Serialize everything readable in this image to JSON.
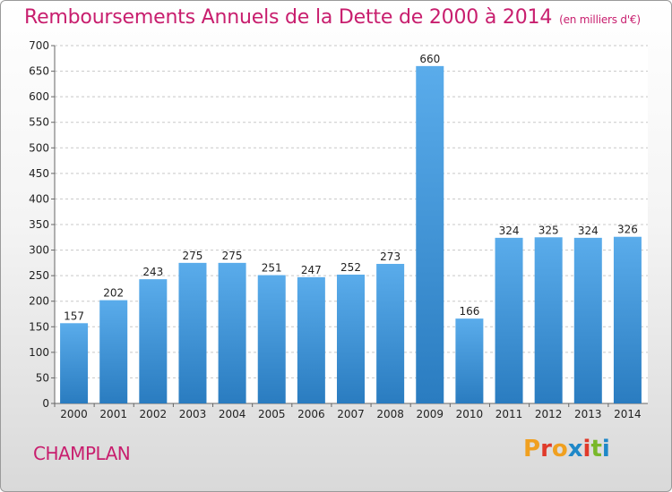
{
  "header": {
    "title": "Remboursements Annuels de la Dette de 2000 à 2014",
    "unit": "(en milliers d'€)"
  },
  "footer": {
    "commune": "CHAMPLAN",
    "logo_text": "Proxiti"
  },
  "colors": {
    "title": "#c81e6e",
    "bar_top": "#5aaceb",
    "bar_bottom": "#2a7cc0",
    "logo_letters": [
      "#f0a020",
      "#e03a2a",
      "#f0a020",
      "#1f88c8",
      "#e03a2a",
      "#79b82a",
      "#1f88c8"
    ]
  },
  "chart_data": {
    "type": "bar",
    "categories": [
      "2000",
      "2001",
      "2002",
      "2003",
      "2004",
      "2005",
      "2006",
      "2007",
      "2008",
      "2009",
      "2010",
      "2011",
      "2012",
      "2013",
      "2014"
    ],
    "values": [
      157,
      202,
      243,
      275,
      275,
      251,
      247,
      252,
      273,
      660,
      166,
      324,
      325,
      324,
      326
    ],
    "ylim": [
      0,
      700
    ],
    "yticks": [
      0,
      50,
      100,
      150,
      200,
      250,
      300,
      350,
      400,
      450,
      500,
      550,
      600,
      650,
      700
    ],
    "grid": true,
    "xlabel": "",
    "ylabel": ""
  }
}
